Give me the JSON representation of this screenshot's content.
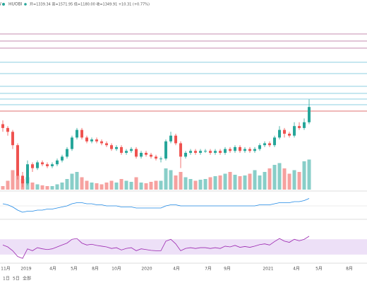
{
  "header": {
    "symbol": "W",
    "exchange": "HUOBI",
    "ohlc": "开=1339.34 高=1571.95 低=1180.00 收=1349.91 +10.31 (+0.77%)"
  },
  "chart_data": {
    "type": "candlestick",
    "ylim": [
      0,
      100
    ],
    "up_color": "#26a69a",
    "down_color": "#ef5350",
    "candles": [
      [
        35,
        37,
        31,
        33
      ],
      [
        33,
        34,
        29,
        31
      ],
      [
        31,
        32,
        22,
        24
      ],
      [
        24,
        25,
        6,
        8
      ],
      [
        8,
        10,
        2,
        4
      ],
      [
        4,
        16,
        3,
        14
      ],
      [
        14,
        15,
        10,
        12
      ],
      [
        12,
        16,
        11,
        15
      ],
      [
        15,
        16,
        13,
        14
      ],
      [
        14,
        15,
        12,
        13
      ],
      [
        13,
        15,
        12,
        14
      ],
      [
        14,
        17,
        13,
        16
      ],
      [
        16,
        19,
        15,
        18
      ],
      [
        18,
        23,
        17,
        22
      ],
      [
        22,
        29,
        21,
        28
      ],
      [
        28,
        33,
        27,
        32
      ],
      [
        32,
        33,
        27,
        28
      ],
      [
        28,
        29,
        25,
        26
      ],
      [
        26,
        28,
        25,
        27
      ],
      [
        27,
        28,
        25,
        26
      ],
      [
        26,
        27,
        24,
        25
      ],
      [
        25,
        26,
        23,
        24
      ],
      [
        24,
        25,
        21,
        22
      ],
      [
        22,
        24,
        21,
        23
      ],
      [
        23,
        24,
        19,
        20
      ],
      [
        20,
        22,
        19,
        21
      ],
      [
        21,
        23,
        20,
        22
      ],
      [
        22,
        23,
        17,
        18
      ],
      [
        18,
        21,
        17,
        20
      ],
      [
        20,
        21,
        18,
        19
      ],
      [
        19,
        20,
        17,
        18
      ],
      [
        18,
        19,
        16,
        17
      ],
      [
        17,
        18,
        15,
        17
      ],
      [
        17,
        27,
        16,
        26
      ],
      [
        26,
        31,
        25,
        29
      ],
      [
        29,
        30,
        24,
        25
      ],
      [
        25,
        26,
        12,
        18
      ],
      [
        18,
        21,
        17,
        20
      ],
      [
        20,
        22,
        19,
        21
      ],
      [
        21,
        22,
        19,
        20
      ],
      [
        20,
        22,
        19,
        21
      ],
      [
        21,
        22,
        20,
        21
      ],
      [
        21,
        22,
        19,
        20
      ],
      [
        20,
        22,
        19,
        21
      ],
      [
        21,
        22,
        19,
        20
      ],
      [
        20,
        23,
        19,
        22
      ],
      [
        22,
        23,
        20,
        21
      ],
      [
        21,
        24,
        20,
        23
      ],
      [
        23,
        24,
        20,
        21
      ],
      [
        21,
        23,
        20,
        22
      ],
      [
        22,
        23,
        20,
        21
      ],
      [
        21,
        23,
        20,
        22
      ],
      [
        22,
        25,
        21,
        24
      ],
      [
        24,
        26,
        23,
        25
      ],
      [
        25,
        26,
        23,
        24
      ],
      [
        24,
        29,
        23,
        28
      ],
      [
        28,
        34,
        27,
        32
      ],
      [
        32,
        33,
        28,
        30
      ],
      [
        30,
        31,
        28,
        29
      ],
      [
        29,
        36,
        28,
        34
      ],
      [
        34,
        36,
        32,
        33
      ],
      [
        33,
        38,
        32,
        36
      ],
      [
        36,
        48,
        35,
        44
      ]
    ],
    "volume": {
      "ylim": [
        0,
        100
      ],
      "values": [
        10,
        25,
        55,
        40,
        30,
        35,
        20,
        15,
        12,
        10,
        10,
        15,
        20,
        30,
        45,
        50,
        35,
        25,
        20,
        18,
        15,
        20,
        25,
        20,
        30,
        25,
        22,
        35,
        20,
        18,
        22,
        25,
        25,
        60,
        55,
        40,
        50,
        35,
        30,
        25,
        28,
        30,
        35,
        38,
        40,
        45,
        50,
        42,
        38,
        40,
        45,
        55,
        40,
        50,
        60,
        70,
        75,
        60,
        45,
        55,
        50,
        80,
        85
      ]
    },
    "macd": {
      "ylim": [
        -10,
        10
      ],
      "color": "#1e88e5",
      "values": [
        2,
        1,
        -1,
        -4,
        -6,
        -5,
        -5,
        -4,
        -4,
        -3,
        -3,
        -2,
        -1,
        0,
        2,
        3,
        3,
        2,
        2,
        1,
        1,
        0,
        0,
        0,
        -1,
        -1,
        -1,
        -2,
        -2,
        -2,
        -2,
        -2,
        -2,
        0,
        1,
        1,
        0,
        0,
        0,
        0,
        0,
        0,
        0,
        0,
        0,
        0,
        0,
        0,
        0,
        0,
        0,
        0,
        1,
        1,
        1,
        2,
        3,
        3,
        3,
        4,
        4,
        5,
        7
      ]
    },
    "rsi": {
      "ylim": [
        0,
        100
      ],
      "color": "#9c27b0",
      "band": [
        30,
        70
      ],
      "values": [
        55,
        50,
        40,
        25,
        20,
        45,
        40,
        48,
        45,
        43,
        45,
        50,
        55,
        60,
        70,
        72,
        60,
        55,
        57,
        54,
        52,
        50,
        46,
        48,
        42,
        46,
        48,
        40,
        45,
        43,
        41,
        40,
        40,
        65,
        70,
        58,
        40,
        46,
        48,
        46,
        48,
        48,
        46,
        48,
        46,
        52,
        50,
        54,
        49,
        51,
        49,
        52,
        56,
        58,
        55,
        64,
        72,
        65,
        62,
        70,
        66,
        70,
        78
      ]
    },
    "x_labels": [
      "11月",
      "2019",
      "4月",
      "5月",
      "8月",
      "10月",
      "2020",
      "4月",
      "7月",
      "9月",
      "2021",
      "4月",
      "5月",
      "8月"
    ]
  },
  "footer": {
    "ranges": [
      "1日",
      "5日",
      "全部"
    ]
  }
}
